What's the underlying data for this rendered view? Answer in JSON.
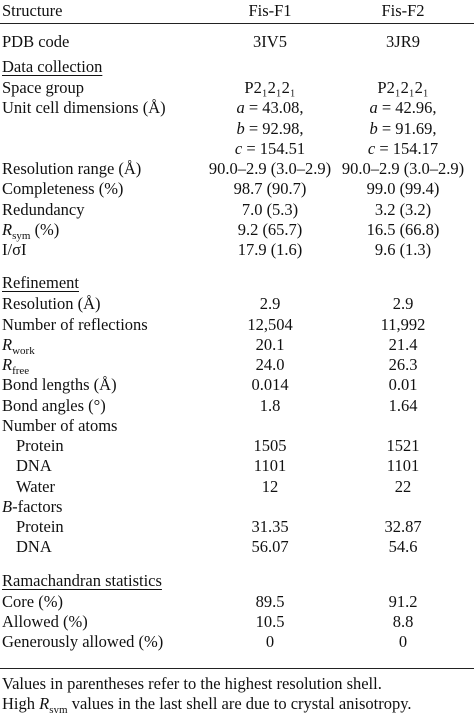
{
  "header": {
    "structure": "Structure",
    "columns": [
      "Fis-F1",
      "Fis-F2"
    ]
  },
  "rows": [
    {
      "label": "PDB code",
      "values": [
        "3IV5",
        "3JR9"
      ]
    },
    {
      "section": "Data collection"
    },
    {
      "label": "Space group",
      "values": [
        "P2₁2₁2₁",
        "P2₁2₁2₁"
      ]
    },
    {
      "label": "Unit cell dimensions (Å)",
      "values": [
        {
          "italic": "a",
          "text": " = 43.08,"
        },
        {
          "italic": "a",
          "text": " = 42.96,"
        }
      ]
    },
    {
      "values": [
        {
          "italic": "b",
          "text": " = 92.98,"
        },
        {
          "italic": "b",
          "text": " = 91.69,"
        }
      ]
    },
    {
      "values": [
        {
          "italic": "c",
          "text": " = 154.51"
        },
        {
          "italic": "c",
          "text": " = 154.17"
        }
      ]
    },
    {
      "label": "Resolution range (Å)",
      "values": [
        "90.0–2.9 (3.0–2.9)",
        "90.0–2.9 (3.0–2.9)"
      ]
    },
    {
      "label": "Completeness (%)",
      "values": [
        "98.7 (90.7)",
        "99.0 (99.4)"
      ]
    },
    {
      "label": "Redundancy",
      "values": [
        "7.0 (5.3)",
        "3.2 (3.2)"
      ]
    },
    {
      "label": {
        "italic": "R",
        "sub": "sym",
        "text": " (%)"
      },
      "values": [
        "9.2 (65.7)",
        "16.5 (66.8)"
      ]
    },
    {
      "label": "I/σI",
      "values": [
        "17.9 (1.6)",
        "9.6 (1.3)"
      ]
    },
    {
      "section": "Refinement"
    },
    {
      "label": "Resolution (Å)",
      "values": [
        "2.9",
        "2.9"
      ]
    },
    {
      "label": "Number of reflections",
      "values": [
        "12,504",
        "11,992"
      ]
    },
    {
      "label": {
        "italic": "R",
        "sub": "work"
      },
      "values": [
        "20.1",
        "21.4"
      ]
    },
    {
      "label": {
        "italic": "R",
        "sub": "free"
      },
      "values": [
        "24.0",
        "26.3"
      ]
    },
    {
      "label": "Bond lengths (Å)",
      "values": [
        "0.014",
        "0.01"
      ]
    },
    {
      "label": "Bond angles (°)",
      "values": [
        "1.8",
        "1.64"
      ]
    },
    {
      "label": "Number of atoms"
    },
    {
      "label": "Protein",
      "indent": true,
      "values": [
        "1505",
        "1521"
      ]
    },
    {
      "label": "DNA",
      "indent": true,
      "values": [
        "1101",
        "1101"
      ]
    },
    {
      "label": "Water",
      "indent": true,
      "values": [
        "12",
        "22"
      ]
    },
    {
      "label": {
        "italic": "B",
        "text": "-factors"
      }
    },
    {
      "label": "Protein",
      "indent": true,
      "values": [
        "31.35",
        "32.87"
      ]
    },
    {
      "label": "DNA",
      "indent": true,
      "values": [
        "56.07",
        "54.6"
      ]
    },
    {
      "section": "Ramachandran statistics"
    },
    {
      "label": "Core (%)",
      "values": [
        "89.5",
        "91.2"
      ]
    },
    {
      "label": "Allowed (%)",
      "values": [
        "10.5",
        "8.8"
      ]
    },
    {
      "label": "Generously allowed (%)",
      "values": [
        "0",
        "0"
      ]
    }
  ],
  "footnotes": [
    "Values in parentheses refer to the highest resolution shell.",
    {
      "before": "High ",
      "italic": "R",
      "sub": "sym",
      "text": " values in the last shell are due to crystal anisotropy."
    }
  ]
}
